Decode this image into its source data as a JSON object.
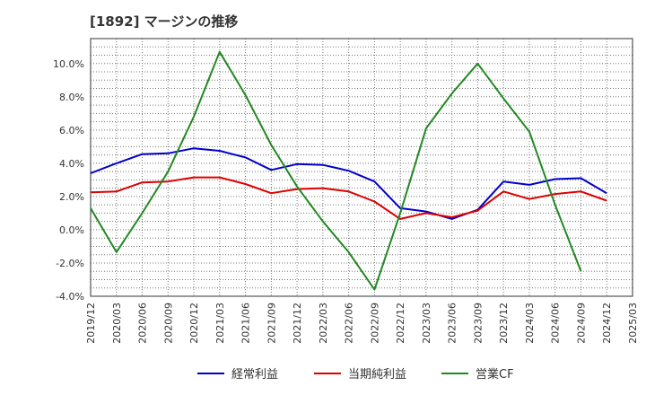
{
  "title": "[1892]  マージンの推移",
  "chart_data": {
    "type": "line",
    "title": "[1892]  マージンの推移",
    "xlabel": "",
    "ylabel": "",
    "x": [
      "2019/12",
      "2020/03",
      "2020/06",
      "2020/09",
      "2020/12",
      "2021/03",
      "2021/06",
      "2021/09",
      "2021/12",
      "2022/03",
      "2022/06",
      "2022/09",
      "2022/12",
      "2023/03",
      "2023/06",
      "2023/09",
      "2023/12",
      "2024/03",
      "2024/06",
      "2024/09",
      "2024/12",
      "2025/03"
    ],
    "y_ticks": [
      -4.0,
      -2.0,
      0.0,
      2.0,
      4.0,
      6.0,
      8.0,
      10.0
    ],
    "y_tick_labels": [
      "-4.0%",
      "-2.0%",
      "0.0%",
      "2.0%",
      "4.0%",
      "6.0%",
      "8.0%",
      "10.0%"
    ],
    "ylim": [
      -4.0,
      11.5
    ],
    "grid": true,
    "legend": "bottom",
    "series": [
      {
        "name": "経常利益",
        "color": "#0000cc",
        "values": [
          3.4,
          4.0,
          4.55,
          4.6,
          4.9,
          4.75,
          4.35,
          3.6,
          3.95,
          3.9,
          3.55,
          2.9,
          1.3,
          1.1,
          0.65,
          1.2,
          2.9,
          2.7,
          3.05,
          3.1,
          2.2,
          null
        ]
      },
      {
        "name": "当期純利益",
        "color": "#dd0000",
        "values": [
          2.25,
          2.3,
          2.85,
          2.9,
          3.15,
          3.15,
          2.75,
          2.2,
          2.45,
          2.5,
          2.3,
          1.7,
          0.65,
          1.0,
          0.75,
          1.15,
          2.3,
          1.85,
          2.15,
          2.3,
          1.75,
          null
        ]
      },
      {
        "name": "営業CF",
        "color": "#228822",
        "values": [
          1.3,
          -1.35,
          1.0,
          3.5,
          6.8,
          10.7,
          8.1,
          5.1,
          2.6,
          0.5,
          -1.35,
          -3.6,
          1.0,
          6.1,
          8.2,
          10.0,
          7.9,
          5.9,
          1.5,
          -2.5,
          null,
          null
        ]
      }
    ]
  }
}
